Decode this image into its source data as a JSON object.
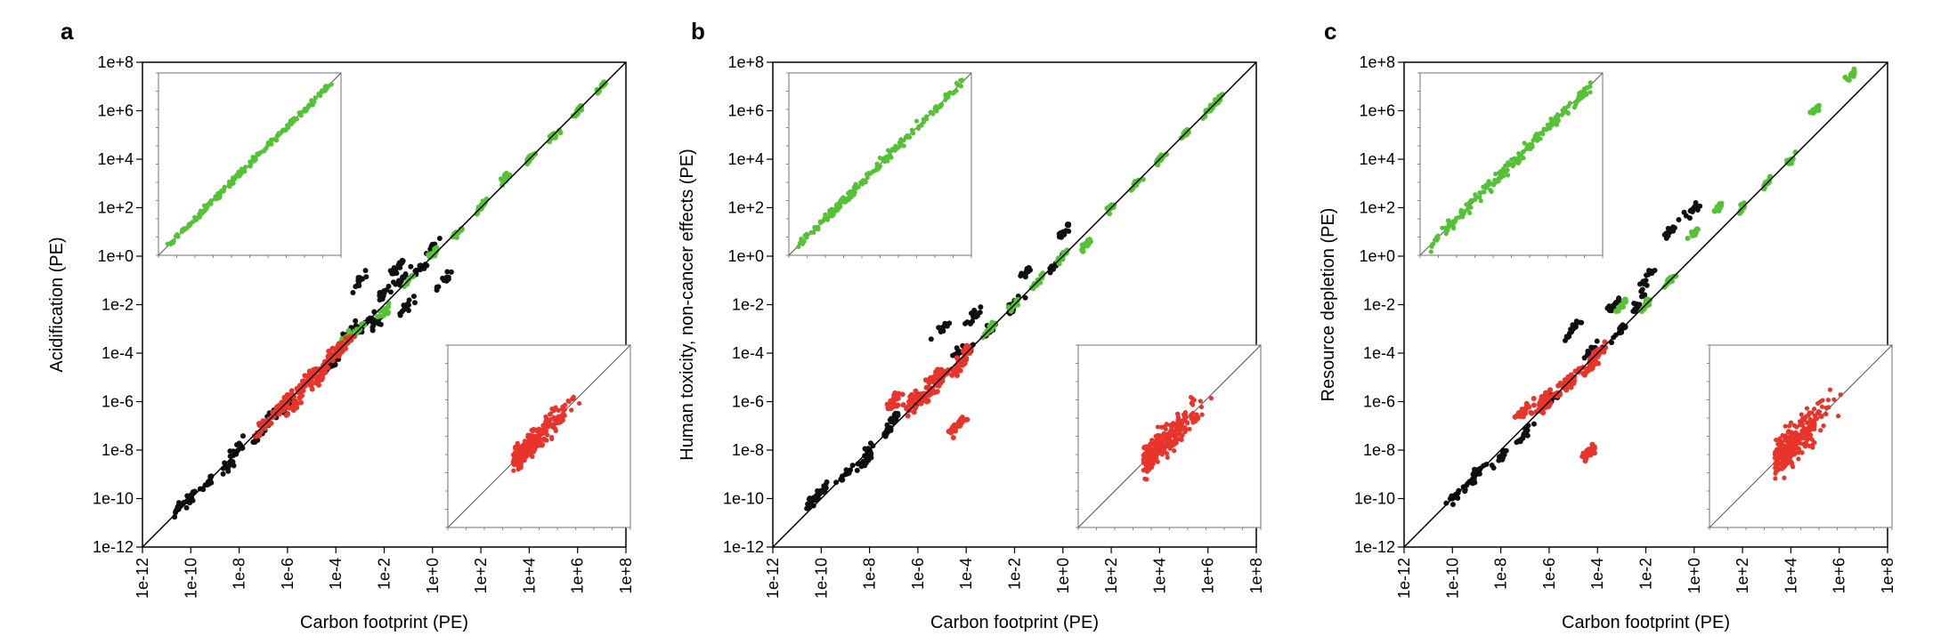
{
  "chart_data": [
    {
      "panel": "a",
      "type": "scatter",
      "xlabel": "Carbon footprint (PE)",
      "ylabel": "Acidification (PE)",
      "x_scale": "log",
      "y_scale": "log",
      "xlim": [
        1e-12,
        100000000.0
      ],
      "ylim": [
        1e-12,
        100000000.0
      ],
      "x_ticks": [
        "1e-12",
        "1e-10",
        "1e-8",
        "1e-6",
        "1e-4",
        "1e-2",
        "1e+0",
        "1e+2",
        "1e+4",
        "1e+6",
        "1e+8"
      ],
      "y_ticks": [
        "1e-12",
        "1e-10",
        "1e-8",
        "1e-6",
        "1e-4",
        "1e-2",
        "1e+0",
        "1e+2",
        "1e+4",
        "1e+6",
        "1e+8"
      ],
      "reference_line": "y = x",
      "series": [
        {
          "color": "#111111",
          "points": [
            [
              3e-11,
              4e-11
            ],
            [
              1e-10,
              1e-10
            ],
            [
              5e-10,
              4e-10
            ],
            [
              3e-09,
              2e-09
            ],
            [
              1e-08,
              1.5e-08
            ],
            [
              6e-08,
              4e-08
            ],
            [
              3e-07,
              3e-07
            ],
            [
              1e-06,
              6e-07
            ],
            [
              5e-05,
              3e-05
            ],
            [
              0.0001,
              8e-05
            ],
            [
              0.0003,
              0.0006
            ],
            [
              0.001,
              0.001
            ],
            [
              0.001,
              0.1
            ],
            [
              0.002,
              0.002
            ],
            [
              0.005,
              0.002
            ],
            [
              0.01,
              0.03
            ],
            [
              0.03,
              0.3
            ],
            [
              0.05,
              0.1
            ],
            [
              0.1,
              0.01
            ],
            [
              0.3,
              0.3
            ],
            [
              1.0,
              2.0
            ],
            [
              3.0,
              0.1
            ]
          ]
        },
        {
          "color": "#55c235",
          "points": [
            [
              0.0001,
              0.0001
            ],
            [
              0.0003,
              0.0005
            ],
            [
              0.001,
              0.001
            ],
            [
              0.01,
              0.005
            ],
            [
              0.1,
              0.1
            ],
            [
              1.0,
              1.2
            ],
            [
              10.0,
              8.0
            ],
            [
              100.0,
              100.0
            ],
            [
              1000.0,
              1500.0
            ],
            [
              10000.0,
              10000.0
            ],
            [
              100000.0,
              80000.0
            ],
            [
              1000000.0,
              1000000.0
            ],
            [
              10000000.0,
              10000000.0
            ]
          ]
        },
        {
          "color": "#e8342b",
          "points": [
            [
              1e-07,
              1e-07
            ],
            [
              5e-07,
              6e-07
            ],
            [
              1e-06,
              1e-06
            ],
            [
              2e-06,
              8e-07
            ],
            [
              5e-06,
              6e-06
            ],
            [
              1e-05,
              1e-05
            ],
            [
              2e-05,
              1e-05
            ],
            [
              5e-05,
              6e-05
            ],
            [
              0.0001,
              0.0001
            ],
            [
              0.0002,
              0.0002
            ]
          ]
        }
      ]
    },
    {
      "panel": "b",
      "type": "scatter",
      "xlabel": "Carbon footprint (PE)",
      "ylabel": "Human toxicity, non-cancer effects (PE)",
      "x_scale": "log",
      "y_scale": "log",
      "xlim": [
        1e-12,
        100000000.0
      ],
      "ylim": [
        1e-12,
        100000000.0
      ],
      "x_ticks": [
        "1e-12",
        "1e-10",
        "1e-8",
        "1e-6",
        "1e-4",
        "1e-2",
        "1e+0",
        "1e+2",
        "1e+4",
        "1e+6",
        "1e+8"
      ],
      "y_ticks": [
        "1e-12",
        "1e-10",
        "1e-8",
        "1e-6",
        "1e-4",
        "1e-2",
        "1e+0",
        "1e+2",
        "1e+4",
        "1e+6",
        "1e+8"
      ],
      "reference_line": "y = x",
      "series": [
        {
          "color": "#111111",
          "points": [
            [
              5e-11,
              1e-10
            ],
            [
              1e-10,
              2e-10
            ],
            [
              1e-09,
              1e-09
            ],
            [
              5e-09,
              3e-09
            ],
            [
              1e-08,
              1e-08
            ],
            [
              5e-08,
              6e-08
            ],
            [
              1e-07,
              2e-07
            ],
            [
              1e-06,
              1e-06
            ],
            [
              1e-05,
              0.001
            ],
            [
              5e-05,
              0.0001
            ],
            [
              0.0001,
              0.0001
            ],
            [
              0.0002,
              0.003
            ],
            [
              0.001,
              0.001
            ],
            [
              0.01,
              0.01
            ],
            [
              0.03,
              0.2
            ],
            [
              0.5,
              0.5
            ],
            [
              1.0,
              10.0
            ]
          ]
        },
        {
          "color": "#55c235",
          "points": [
            [
              0.001,
              0.001
            ],
            [
              0.01,
              0.01
            ],
            [
              0.1,
              0.1
            ],
            [
              1.0,
              1.0
            ],
            [
              10.0,
              3.0
            ],
            [
              100.0,
              100.0
            ],
            [
              1000.0,
              1000.0
            ],
            [
              10000.0,
              10000.0
            ],
            [
              100000.0,
              100000.0
            ],
            [
              1000000.0,
              1000000.0
            ],
            [
              3000000.0,
              3000000.0
            ]
          ]
        },
        {
          "color": "#e8342b",
          "points": [
            [
              1e-07,
              1e-06
            ],
            [
              5e-07,
              1e-06
            ],
            [
              1e-06,
              1e-06
            ],
            [
              3e-06,
              2e-06
            ],
            [
              5e-06,
              1e-05
            ],
            [
              1e-05,
              1e-05
            ],
            [
              5e-05,
              3e-05
            ],
            [
              0.0001,
              0.0001
            ],
            [
              5e-05,
              1e-07
            ]
          ]
        }
      ]
    },
    {
      "panel": "c",
      "type": "scatter",
      "xlabel": "Carbon footprint (PE)",
      "ylabel": "Resource depletion (PE)",
      "x_scale": "log",
      "y_scale": "log",
      "xlim": [
        1e-12,
        100000000.0
      ],
      "ylim": [
        1e-12,
        100000000.0
      ],
      "x_ticks": [
        "1e-12",
        "1e-10",
        "1e-8",
        "1e-6",
        "1e-4",
        "1e-2",
        "1e+0",
        "1e+2",
        "1e+4",
        "1e+6",
        "1e+8"
      ],
      "y_ticks": [
        "1e-12",
        "1e-10",
        "1e-8",
        "1e-6",
        "1e-4",
        "1e-2",
        "1e+0",
        "1e+2",
        "1e+4",
        "1e+6",
        "1e+8"
      ],
      "reference_line": "y = x",
      "series": [
        {
          "color": "#111111",
          "points": [
            [
              1e-10,
              1e-10
            ],
            [
              5e-10,
              5e-10
            ],
            [
              1e-09,
              1e-09
            ],
            [
              1e-08,
              5e-09
            ],
            [
              1e-07,
              5e-08
            ],
            [
              1e-06,
              1e-06
            ],
            [
              1e-05,
              0.001
            ],
            [
              5e-05,
              0.0001
            ],
            [
              0.0001,
              0.0001
            ],
            [
              0.0005,
              0.01
            ],
            [
              0.001,
              0.001
            ],
            [
              0.005,
              0.01
            ],
            [
              0.01,
              0.1
            ],
            [
              0.1,
              10.0
            ],
            [
              1.0,
              100.0
            ]
          ]
        },
        {
          "color": "#55c235",
          "points": [
            [
              0.0001,
              0.0001
            ],
            [
              0.001,
              0.01
            ],
            [
              0.01,
              0.01
            ],
            [
              0.1,
              0.1
            ],
            [
              1.0,
              10.0
            ],
            [
              10.0,
              100.0
            ],
            [
              100.0,
              100.0
            ],
            [
              1000.0,
              1000.0
            ],
            [
              10000.0,
              10000.0
            ],
            [
              100000.0,
              1000000.0
            ],
            [
              3000000.0,
              30000000.0
            ]
          ]
        },
        {
          "color": "#e8342b",
          "points": [
            [
              1e-07,
              5e-07
            ],
            [
              5e-07,
              1e-06
            ],
            [
              1e-06,
              1e-06
            ],
            [
              5e-06,
              5e-06
            ],
            [
              1e-05,
              1e-05
            ],
            [
              5e-05,
              3e-05
            ],
            [
              0.0001,
              0.0001
            ],
            [
              5e-05,
              1e-08
            ]
          ]
        }
      ]
    }
  ]
}
